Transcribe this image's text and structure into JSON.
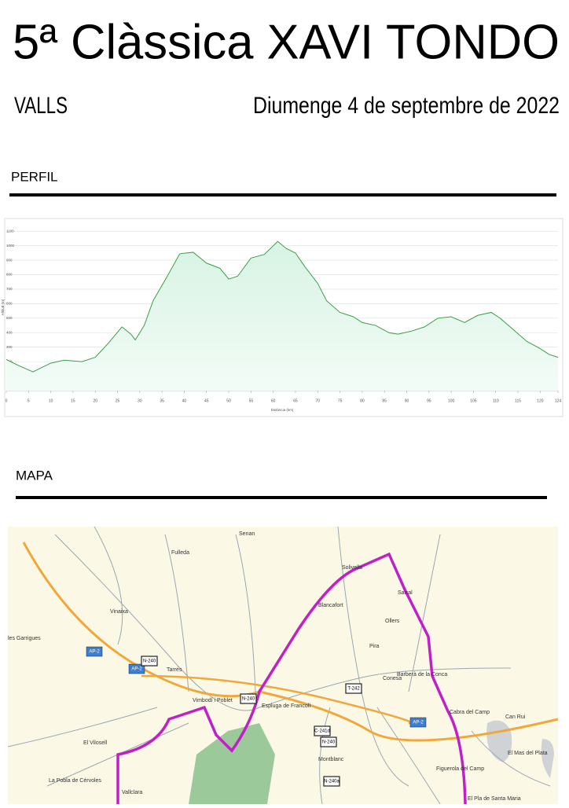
{
  "header": {
    "title": "5ª Clàssica XAVI TONDO",
    "place": "VALLS",
    "date": "Diumenge 4 de septembre de 2022"
  },
  "sections": {
    "profile": "PERFIL",
    "map": "MAPA"
  },
  "chart_data": {
    "type": "line",
    "xlabel": "Distància (km)",
    "ylabel": "Altitud (m)",
    "x": [
      0,
      3,
      6,
      10,
      13,
      17,
      20,
      23,
      26,
      28,
      29,
      31,
      33,
      36,
      39,
      42,
      45,
      48,
      50,
      52,
      55,
      58,
      61,
      63,
      65,
      67,
      70,
      72,
      75,
      78,
      80,
      83,
      86,
      88,
      91,
      94,
      97,
      100,
      103,
      106,
      109,
      111,
      114,
      117,
      120,
      122,
      124
    ],
    "series": [
      {
        "name": "Altitud",
        "color": "#3a9e4a",
        "values": [
          215,
          170,
          130,
          190,
          210,
          200,
          230,
          330,
          440,
          390,
          350,
          450,
          620,
          780,
          945,
          955,
          880,
          845,
          770,
          790,
          915,
          940,
          1030,
          980,
          950,
          860,
          740,
          620,
          540,
          510,
          470,
          450,
          400,
          390,
          410,
          440,
          500,
          510,
          470,
          520,
          540,
          500,
          420,
          340,
          290,
          250,
          230
        ]
      }
    ],
    "xlim": [
      0,
      124
    ],
    "ylim": [
      0,
      1150
    ],
    "xticks": [
      0,
      5,
      10,
      15,
      20,
      25,
      30,
      35,
      40,
      45,
      50,
      55,
      60,
      65,
      70,
      75,
      80,
      85,
      90,
      95,
      100,
      105,
      110,
      115,
      120,
      124
    ],
    "yticks": [
      100,
      200,
      300,
      400,
      500,
      600,
      700,
      800,
      900,
      1000,
      1100
    ],
    "grid": true
  },
  "map": {
    "places": [
      "Senan",
      "Fulleda",
      "Solivella",
      "Blancafort",
      "Sarral",
      "Ollers",
      "Pira",
      "Conesa",
      "Barberà de la Conca",
      "Vinaixa",
      "Tarrés",
      "les Garrigues",
      "Vimbodí i Poblet",
      "Espluga de Francolí",
      "Montblanc",
      "Cabra del Camp",
      "Can Rui",
      "El Mas del Plata",
      "Figuerola del Camp",
      "El Pla de Santa Maria",
      "El Vilosell",
      "La Pobla de Cérvoles",
      "Vallclara"
    ],
    "shields": [
      "AP-2",
      "AP-2",
      "AP-2",
      "N-240",
      "N-240",
      "N-240",
      "N-240a",
      "C-241d",
      "T-242"
    ]
  }
}
